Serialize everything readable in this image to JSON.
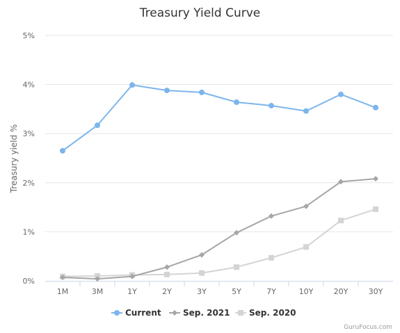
{
  "chart_data": {
    "type": "line",
    "title": "Treasury Yield Curve",
    "xlabel": "",
    "ylabel": "Treasury yield %",
    "categories": [
      "1M",
      "3M",
      "1Y",
      "2Y",
      "3Y",
      "5Y",
      "7Y",
      "10Y",
      "20Y",
      "30Y"
    ],
    "ylim": [
      0,
      5
    ],
    "yticks": [
      "0%",
      "1%",
      "2%",
      "3%",
      "4%",
      "5%"
    ],
    "grid": true,
    "legend_position": "bottom",
    "series": [
      {
        "name": "Current",
        "color": "#7cb5ec",
        "marker": "circle",
        "values": [
          2.65,
          3.17,
          3.99,
          3.88,
          3.84,
          3.64,
          3.57,
          3.46,
          3.8,
          3.53
        ]
      },
      {
        "name": "Sep. 2021",
        "color": "#a6a6a6",
        "marker": "diamond",
        "values": [
          0.07,
          0.04,
          0.09,
          0.28,
          0.53,
          0.98,
          1.32,
          1.52,
          2.02,
          2.08
        ]
      },
      {
        "name": "Sep. 2020",
        "color": "#d4d4d4",
        "marker": "square",
        "values": [
          0.09,
          0.1,
          0.12,
          0.13,
          0.16,
          0.28,
          0.47,
          0.69,
          1.23,
          1.46
        ]
      }
    ]
  },
  "credit": "GuruFocus.com"
}
